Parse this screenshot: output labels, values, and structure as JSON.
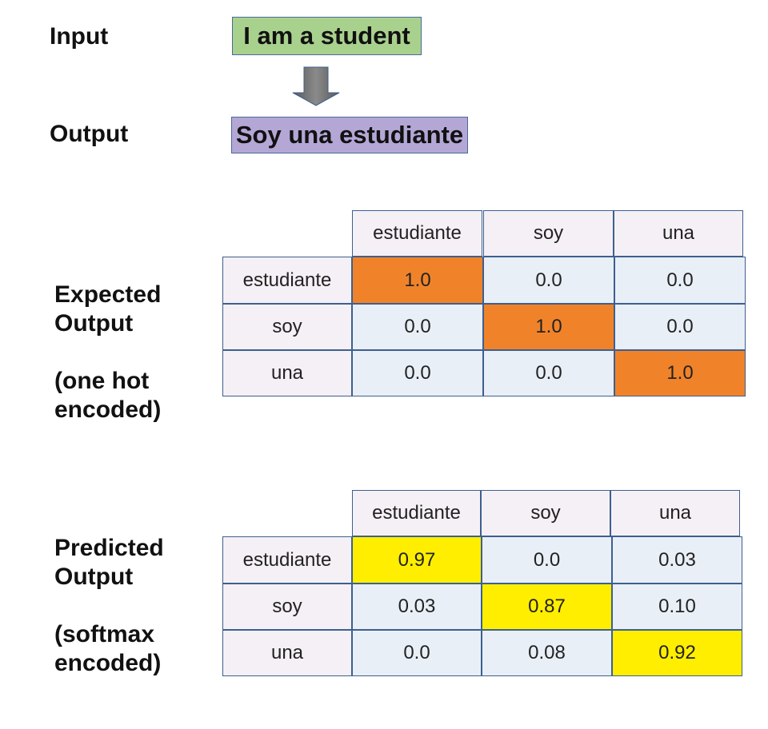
{
  "top": {
    "input_label": "Input",
    "input_text": "I am a student",
    "output_label": "Output",
    "output_text": "Soy una estudiante",
    "input_color": "#a9d18e",
    "output_color": "#b4a7d6"
  },
  "expected": {
    "label_line1": "Expected",
    "label_line2": "Output",
    "label_line3": "(one hot",
    "label_line4": "encoded)",
    "highlight_color": "#f0832a",
    "columns": [
      "estudiante",
      "soy",
      "una"
    ],
    "rows": [
      {
        "label": "estudiante",
        "values": [
          "1.0",
          "0.0",
          "0.0"
        ]
      },
      {
        "label": "soy",
        "values": [
          "0.0",
          "1.0",
          "0.0"
        ]
      },
      {
        "label": "una",
        "values": [
          "0.0",
          "0.0",
          "1.0"
        ]
      }
    ]
  },
  "predicted": {
    "label_line1": "Predicted",
    "label_line2": "Output",
    "label_line3": "(softmax",
    "label_line4": "encoded)",
    "highlight_color": "#ffee00",
    "columns": [
      "estudiante",
      "soy",
      "una"
    ],
    "rows": [
      {
        "label": "estudiante",
        "values": [
          "0.97",
          "0.0",
          "0.03"
        ]
      },
      {
        "label": "soy",
        "values": [
          "0.03",
          "0.87",
          "0.10"
        ]
      },
      {
        "label": "una",
        "values": [
          "0.0",
          "0.08",
          "0.92"
        ]
      }
    ]
  }
}
